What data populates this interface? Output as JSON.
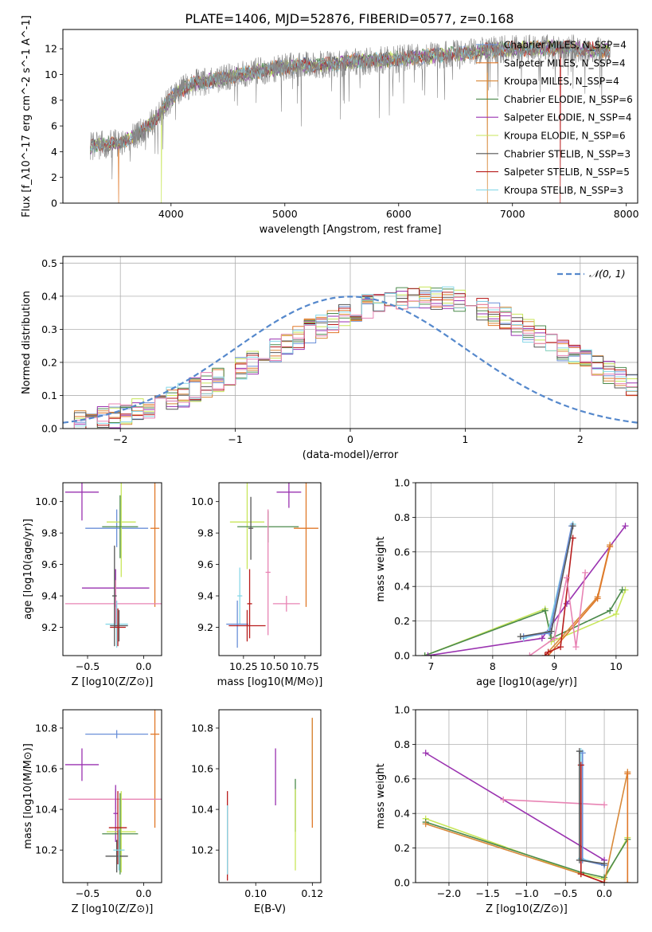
{
  "figure_title": "PLATE=1406, MJD=52876, FIBERID=0577, z=0.168",
  "palette": [
    "#6a8fd8",
    "#e07828",
    "#d8893a",
    "#4c8a4c",
    "#9a32b0",
    "#c8e65a",
    "#555555",
    "#b81c1c",
    "#88d8e8",
    "#e884b4",
    "#888888"
  ],
  "chart_data": [
    {
      "id": "spectrum",
      "type": "line",
      "xlabel": "wavelength [Angstrom, rest frame]",
      "ylabel": "Flux [f_λ10^-17 erg cm^-2 s^-1 A^-1]",
      "xlim": [
        3050,
        8100
      ],
      "ylim": [
        0,
        13.5
      ],
      "xticks": [
        4000,
        5000,
        6000,
        7000,
        8000
      ],
      "yticks": [
        0,
        2,
        4,
        6,
        8,
        10,
        12
      ],
      "grid": false,
      "legend_position": "right",
      "legend": [
        {
          "label": "Chabrier MILES, N_SSP=4",
          "color": "#6a8fd8"
        },
        {
          "label": "Salpeter MILES, N_SSP=4",
          "color": "#e07828"
        },
        {
          "label": "Kroupa MILES, N_SSP=4",
          "color": "#d8893a"
        },
        {
          "label": "Chabrier ELODIE, N_SSP=6",
          "color": "#4c8a4c"
        },
        {
          "label": "Salpeter ELODIE, N_SSP=4",
          "color": "#9a32b0"
        },
        {
          "label": "Kroupa ELODIE, N_SSP=6",
          "color": "#c8e65a"
        },
        {
          "label": "Chabrier STELIB, N_SSP=3",
          "color": "#555555"
        },
        {
          "label": "Salpeter STELIB, N_SSP=5",
          "color": "#b81c1c"
        },
        {
          "label": "Kroupa STELIB, N_SSP=3",
          "color": "#88d8e8"
        }
      ],
      "continuum": [
        [
          3290,
          4.4
        ],
        [
          3450,
          4.6
        ],
        [
          3550,
          4.7
        ],
        [
          3650,
          5.1
        ],
        [
          3750,
          5.6
        ],
        [
          3850,
          6.4
        ],
        [
          3950,
          7.6
        ],
        [
          4050,
          8.6
        ],
        [
          4200,
          9.3
        ],
        [
          4400,
          9.6
        ],
        [
          4600,
          10.0
        ],
        [
          4800,
          10.3
        ],
        [
          5000,
          10.6
        ],
        [
          5200,
          10.7
        ],
        [
          5400,
          10.8
        ],
        [
          5600,
          11.0
        ],
        [
          5800,
          11.1
        ],
        [
          6000,
          11.2
        ],
        [
          6200,
          11.4
        ],
        [
          6400,
          11.5
        ],
        [
          6600,
          11.7
        ],
        [
          6800,
          11.9
        ],
        [
          7000,
          12.0
        ],
        [
          7200,
          12.0
        ],
        [
          7400,
          12.1
        ],
        [
          7600,
          12.0
        ],
        [
          7800,
          11.9
        ],
        [
          7860,
          11.8
        ]
      ],
      "absorption_features": [
        [
          3530,
          1.5
        ],
        [
          3900,
          3.8
        ],
        [
          4300,
          2.6
        ],
        [
          6780,
          2.4
        ],
        [
          7410,
          1.8
        ]
      ]
    },
    {
      "id": "residuals",
      "type": "histogram",
      "xlabel": "(data-model)/error",
      "ylabel": "Normed distribution",
      "xlim": [
        -2.5,
        2.5
      ],
      "ylim": [
        0,
        0.52
      ],
      "xticks": [
        -2,
        -1,
        0,
        1,
        2
      ],
      "yticks": [
        0.0,
        0.1,
        0.2,
        0.3,
        0.4,
        0.5
      ],
      "grid": true,
      "legend_position": "upper right",
      "legend": [
        {
          "label": "𝒩(0, 1)",
          "color": "#5588cc"
        }
      ],
      "bin_width": 0.1,
      "bin_start": -2.5,
      "series_base": [
        0.018,
        0.022,
        0.03,
        0.034,
        0.04,
        0.046,
        0.058,
        0.066,
        0.078,
        0.09,
        0.102,
        0.116,
        0.132,
        0.148,
        0.166,
        0.184,
        0.2,
        0.22,
        0.238,
        0.258,
        0.276,
        0.294,
        0.31,
        0.326,
        0.342,
        0.356,
        0.37,
        0.38,
        0.388,
        0.394,
        0.396,
        0.398,
        0.396,
        0.392,
        0.384,
        0.374,
        0.362,
        0.348,
        0.332,
        0.316,
        0.298,
        0.28,
        0.262,
        0.242,
        0.222,
        0.202,
        0.184,
        0.166,
        0.148,
        0.13
      ]
    },
    {
      "id": "age-vs-z",
      "type": "errorbar",
      "xlabel": "Z [log10(Z/Z⊙)]",
      "ylabel": "age  [log10(age/yr)]",
      "xlim": [
        -0.72,
        0.16
      ],
      "ylim": [
        9.02,
        10.12
      ],
      "xticks": [
        -0.5,
        0.0
      ],
      "yticks": [
        9.2,
        9.4,
        9.6,
        9.8,
        10.0
      ],
      "points": [
        {
          "x": -0.55,
          "y": 10.06,
          "xerr": 0.15,
          "yerr": 0.18,
          "color": "#9a32b0"
        },
        {
          "x": -0.24,
          "y": 9.83,
          "xerr": 0.28,
          "yerr": 0.12,
          "color": "#6a8fd8"
        },
        {
          "x": 0.1,
          "y": 9.83,
          "xerr": 0.04,
          "yerr": 0.5,
          "color": "#e07828"
        },
        {
          "x": -0.2,
          "y": 9.87,
          "xerr": 0.13,
          "yerr": 0.35,
          "color": "#c8e65a"
        },
        {
          "x": -0.21,
          "y": 9.84,
          "xerr": 0.16,
          "yerr": 0.2,
          "color": "#4c8a4c"
        },
        {
          "x": -0.25,
          "y": 9.45,
          "xerr": 0.3,
          "yerr": 0.12,
          "color": "#9a32b0"
        },
        {
          "x": -0.25,
          "y": 9.35,
          "xerr": 0.45,
          "yerr": 0.15,
          "color": "#e884b4"
        },
        {
          "x": -0.24,
          "y": 9.22,
          "xerr": 0.1,
          "yerr": 0.15,
          "color": "#88d8e8"
        },
        {
          "x": -0.22,
          "y": 9.21,
          "xerr": 0.08,
          "yerr": 0.1,
          "color": "#555555"
        },
        {
          "x": -0.23,
          "y": 9.2,
          "xerr": 0.07,
          "yerr": 0.12,
          "color": "#b81c1c"
        },
        {
          "x": -0.26,
          "y": 9.4,
          "xerr": 0.02,
          "yerr": 0.32,
          "color": "#555555"
        }
      ]
    },
    {
      "id": "age-vs-mass",
      "type": "errorbar",
      "xlabel": "mass [log10(M/M⊙)]",
      "ylabel": "",
      "xlim": [
        10.05,
        10.88
      ],
      "ylim": [
        9.02,
        10.12
      ],
      "xticks": [
        10.25,
        10.5,
        10.75
      ],
      "yticks": [
        9.2,
        9.4,
        9.6,
        9.8,
        10.0
      ],
      "points": [
        {
          "x": 10.62,
          "y": 10.06,
          "xerr": 0.1,
          "yerr": 0.1,
          "color": "#9a32b0"
        },
        {
          "x": 10.28,
          "y": 9.87,
          "xerr": 0.14,
          "yerr": 0.3,
          "color": "#c8e65a"
        },
        {
          "x": 10.45,
          "y": 9.84,
          "xerr": 0.25,
          "yerr": 0.1,
          "color": "#4c8a4c"
        },
        {
          "x": 10.76,
          "y": 9.83,
          "xerr": 0.1,
          "yerr": 0.5,
          "color": "#e07828"
        },
        {
          "x": 10.31,
          "y": 9.83,
          "xerr": 0.02,
          "yerr": 0.2,
          "color": "#555555"
        },
        {
          "x": 10.45,
          "y": 9.55,
          "xerr": 0.02,
          "yerr": 0.4,
          "color": "#e884b4"
        },
        {
          "x": 10.6,
          "y": 9.35,
          "xerr": 0.11,
          "yerr": 0.05,
          "color": "#e884b4"
        },
        {
          "x": 10.3,
          "y": 9.35,
          "xerr": 0.02,
          "yerr": 0.22,
          "color": "#b81c1c"
        },
        {
          "x": 10.22,
          "y": 9.4,
          "xerr": 0.02,
          "yerr": 0.18,
          "color": "#88d8e8"
        },
        {
          "x": 10.2,
          "y": 9.22,
          "xerr": 0.09,
          "yerr": 0.15,
          "color": "#6a8fd8"
        },
        {
          "x": 10.28,
          "y": 9.21,
          "xerr": 0.15,
          "yerr": 0.1,
          "color": "#b81c1c"
        }
      ]
    },
    {
      "id": "weight-vs-age",
      "type": "line",
      "xlabel": "age  [log10(age/yr)]",
      "ylabel": "mass weight",
      "xlim": [
        6.75,
        10.35
      ],
      "ylim": [
        0,
        1.0
      ],
      "xticks": [
        7,
        8,
        9,
        10
      ],
      "yticks": [
        0.0,
        0.2,
        0.4,
        0.6,
        0.8,
        1.0
      ],
      "grid": true,
      "series": [
        {
          "color": "#c8e65a",
          "points": [
            [
              6.9,
              0.0
            ],
            [
              8.85,
              0.27
            ],
            [
              8.95,
              0.08
            ],
            [
              10.0,
              0.24
            ],
            [
              10.15,
              0.38
            ]
          ]
        },
        {
          "color": "#4c8a4c",
          "points": [
            [
              6.9,
              0.0
            ],
            [
              8.85,
              0.26
            ],
            [
              8.95,
              0.1
            ],
            [
              9.9,
              0.26
            ],
            [
              10.1,
              0.38
            ]
          ]
        },
        {
          "color": "#9a32b0",
          "points": [
            [
              6.95,
              0.0
            ],
            [
              8.8,
              0.1
            ],
            [
              9.2,
              0.3
            ],
            [
              10.15,
              0.75
            ]
          ]
        },
        {
          "color": "#d8893a",
          "points": [
            [
              8.85,
              0.0
            ],
            [
              9.7,
              0.34
            ],
            [
              9.9,
              0.64
            ]
          ]
        },
        {
          "color": "#e07828",
          "points": [
            [
              8.9,
              0.0
            ],
            [
              9.7,
              0.33
            ],
            [
              9.9,
              0.63
            ]
          ]
        },
        {
          "color": "#88d8e8",
          "points": [
            [
              8.5,
              0.1
            ],
            [
              8.9,
              0.14
            ],
            [
              9.3,
              0.76
            ]
          ]
        },
        {
          "color": "#6a8fd8",
          "points": [
            [
              8.5,
              0.11
            ],
            [
              8.92,
              0.13
            ],
            [
              9.28,
              0.75
            ]
          ]
        },
        {
          "color": "#b81c1c",
          "points": [
            [
              8.85,
              0.0
            ],
            [
              8.9,
              0.02
            ],
            [
              9.1,
              0.05
            ],
            [
              9.3,
              0.68
            ]
          ]
        },
        {
          "color": "#e884b4",
          "points": [
            [
              8.6,
              0.0
            ],
            [
              9.0,
              0.1
            ],
            [
              9.2,
              0.45
            ],
            [
              9.35,
              0.05
            ],
            [
              9.5,
              0.48
            ]
          ]
        },
        {
          "color": "#555555",
          "points": [
            [
              8.45,
              0.11
            ],
            [
              8.95,
              0.14
            ],
            [
              9.3,
              0.75
            ]
          ]
        }
      ]
    },
    {
      "id": "mass-vs-z",
      "type": "errorbar",
      "xlabel": "Z [log10(Z/Z⊙)]",
      "ylabel": "mass [log10(M/M⊙)]",
      "xlim": [
        -0.72,
        0.16
      ],
      "ylim": [
        10.04,
        10.89
      ],
      "xticks": [
        -0.5,
        0.0
      ],
      "yticks": [
        10.2,
        10.4,
        10.6,
        10.8
      ],
      "points": [
        {
          "x": -0.24,
          "y": 10.77,
          "xerr": 0.28,
          "yerr": 0.02,
          "color": "#6a8fd8"
        },
        {
          "x": 0.1,
          "y": 10.77,
          "xerr": 0.04,
          "yerr": 0.46,
          "color": "#e07828"
        },
        {
          "x": -0.55,
          "y": 10.62,
          "xerr": 0.15,
          "yerr": 0.08,
          "color": "#9a32b0"
        },
        {
          "x": -0.25,
          "y": 10.45,
          "xerr": 0.42,
          "yerr": 0.05,
          "color": "#e884b4"
        },
        {
          "x": -0.25,
          "y": 10.38,
          "xerr": 0.02,
          "yerr": 0.14,
          "color": "#9a32b0"
        },
        {
          "x": -0.2,
          "y": 10.29,
          "xerr": 0.13,
          "yerr": 0.2,
          "color": "#c8e65a"
        },
        {
          "x": -0.21,
          "y": 10.28,
          "xerr": 0.16,
          "yerr": 0.2,
          "color": "#4c8a4c"
        },
        {
          "x": -0.23,
          "y": 10.31,
          "xerr": 0.08,
          "yerr": 0.18,
          "color": "#b81c1c"
        },
        {
          "x": -0.24,
          "y": 10.17,
          "xerr": 0.1,
          "yerr": 0.08,
          "color": "#555555"
        },
        {
          "x": -0.22,
          "y": 10.2,
          "xerr": 0.05,
          "yerr": 0.1,
          "color": "#88d8e8"
        }
      ]
    },
    {
      "id": "mass-vs-ebv",
      "type": "errorbar",
      "xlabel": "E(B-V)",
      "ylabel": "",
      "xlim": [
        0.087,
        0.123
      ],
      "ylim": [
        10.04,
        10.89
      ],
      "xticks": [
        0.1,
        0.12
      ],
      "yticks": [
        10.2,
        10.4,
        10.6,
        10.8
      ],
      "points": [
        {
          "x": 0.09,
          "y": 10.27,
          "xerr": 0,
          "yerr": 0.22,
          "color": "#b81c1c"
        },
        {
          "x": 0.09,
          "y": 10.25,
          "xerr": 0,
          "yerr": 0.17,
          "color": "#88d8e8"
        },
        {
          "x": 0.107,
          "y": 10.56,
          "xerr": 0,
          "yerr": 0.14,
          "color": "#9a32b0"
        },
        {
          "x": 0.114,
          "y": 10.42,
          "xerr": 0,
          "yerr": 0.13,
          "color": "#4c8a4c"
        },
        {
          "x": 0.114,
          "y": 10.3,
          "xerr": 0,
          "yerr": 0.2,
          "color": "#c8e65a"
        },
        {
          "x": 0.12,
          "y": 10.58,
          "xerr": 0,
          "yerr": 0.27,
          "color": "#e07828"
        },
        {
          "x": 0.12,
          "y": 10.6,
          "xerr": 0,
          "yerr": 0.25,
          "color": "#d8893a"
        }
      ]
    },
    {
      "id": "weight-vs-z",
      "type": "line",
      "xlabel": "Z [log10(Z/Z⊙)]",
      "ylabel": "mass weight",
      "xlim": [
        -2.43,
        0.43
      ],
      "ylim": [
        0,
        1.0
      ],
      "xticks": [
        -2.0,
        -1.5,
        -1.0,
        -0.5,
        0.0
      ],
      "yticks": [
        0.0,
        0.2,
        0.4,
        0.6,
        0.8,
        1.0
      ],
      "grid": true,
      "series": [
        {
          "color": "#9a32b0",
          "points": [
            [
              -2.3,
              0.75
            ],
            [
              0.0,
              0.13
            ]
          ]
        },
        {
          "color": "#e884b4",
          "points": [
            [
              -1.3,
              0.48
            ],
            [
              0.0,
              0.45
            ]
          ]
        },
        {
          "color": "#c8e65a",
          "points": [
            [
              -2.3,
              0.37
            ],
            [
              -0.3,
              0.05
            ],
            [
              0.0,
              0.02
            ],
            [
              0.3,
              0.26
            ]
          ]
        },
        {
          "color": "#4c8a4c",
          "points": [
            [
              -2.3,
              0.35
            ],
            [
              -0.3,
              0.06
            ],
            [
              0.0,
              0.03
            ],
            [
              0.3,
              0.25
            ]
          ]
        },
        {
          "color": "#d8893a",
          "points": [
            [
              -2.3,
              0.34
            ],
            [
              -0.3,
              0.05
            ],
            [
              0.0,
              0.0
            ],
            [
              0.3,
              0.64
            ]
          ]
        },
        {
          "color": "#e07828",
          "points": [
            [
              0.3,
              0.0
            ],
            [
              0.3,
              0.63
            ]
          ]
        },
        {
          "color": "#88d8e8",
          "points": [
            [
              -0.3,
              0.76
            ],
            [
              -0.3,
              0.14
            ],
            [
              0.0,
              0.1
            ]
          ]
        },
        {
          "color": "#6a8fd8",
          "points": [
            [
              -0.28,
              0.75
            ],
            [
              -0.28,
              0.13
            ],
            [
              0.0,
              0.1
            ]
          ]
        },
        {
          "color": "#b81c1c",
          "points": [
            [
              -0.3,
              0.68
            ],
            [
              -0.3,
              0.05
            ],
            [
              0.0,
              0.0
            ]
          ]
        },
        {
          "color": "#555555",
          "points": [
            [
              -0.32,
              0.76
            ],
            [
              -0.32,
              0.13
            ],
            [
              0.0,
              0.11
            ]
          ]
        }
      ]
    }
  ]
}
